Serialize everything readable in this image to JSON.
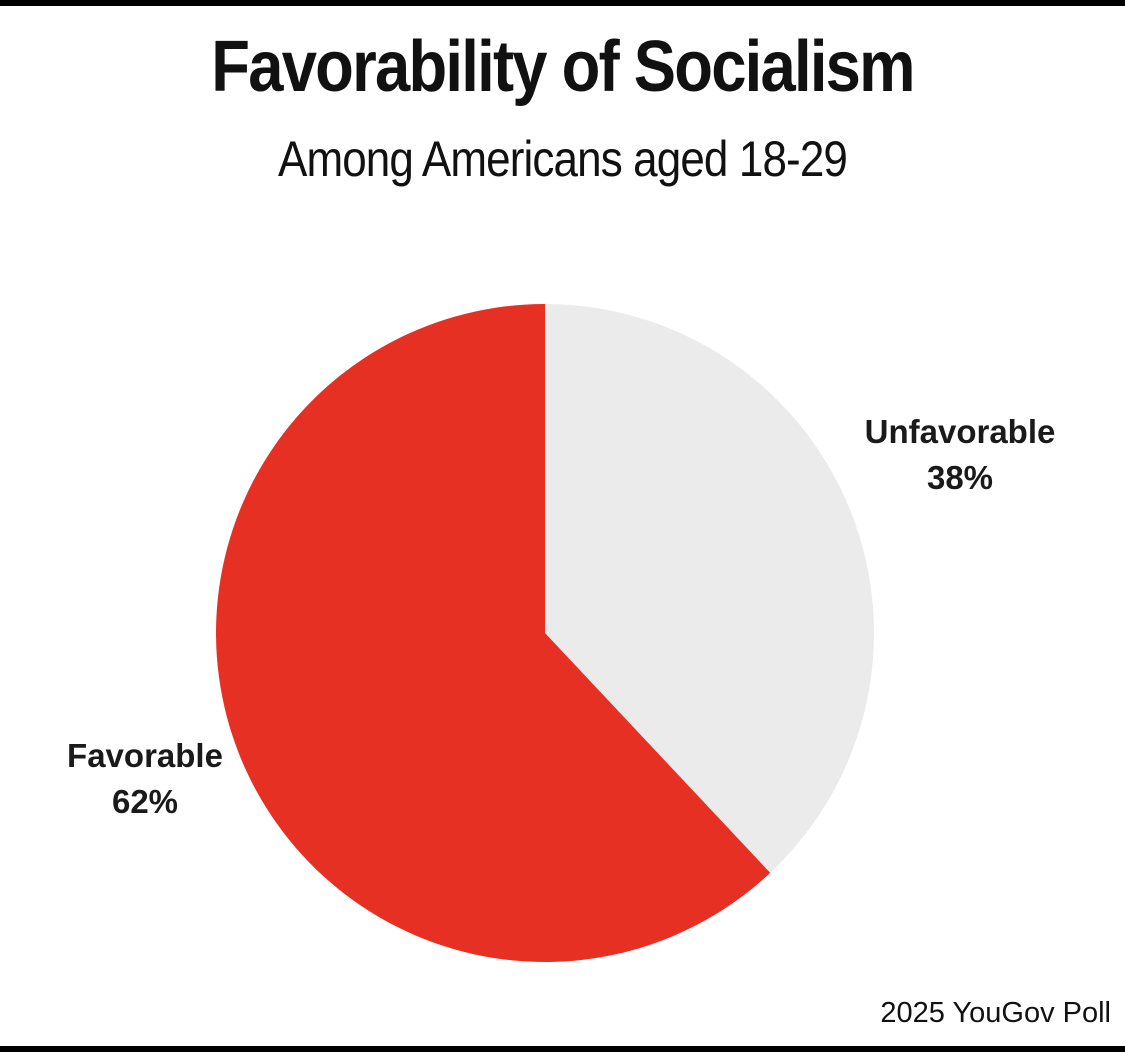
{
  "chart_data": {
    "type": "pie",
    "title": "Favorability of Socialism",
    "subtitle": "Among Americans aged 18-29",
    "slices": [
      {
        "label": "Unfavorable",
        "value": 38,
        "display": "38%",
        "color": "#EBEBEC"
      },
      {
        "label": "Favorable",
        "value": 62,
        "display": "62%",
        "color": "#E63024"
      }
    ],
    "start_angle": "12 o'clock",
    "direction": "clockwise",
    "legend": "none"
  },
  "footer": {
    "source": "2025 YouGov Poll"
  }
}
